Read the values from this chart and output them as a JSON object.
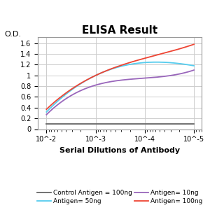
{
  "title": "ELISA Result",
  "ylabel": "O.D.",
  "xlabel": "Serial Dilutions of Antibody",
  "xvals": [
    0.01,
    0.001,
    0.0001,
    1e-05
  ],
  "control_antigen": {
    "label": "Control Antigen = 100ng",
    "color": "#666666",
    "y": [
      0.1,
      0.1,
      0.1,
      0.1
    ]
  },
  "antigen_10ng": {
    "label": "Antigen= 10ng",
    "color": "#9966bb",
    "y": [
      1.1,
      0.95,
      0.82,
      0.27
    ]
  },
  "antigen_50ng": {
    "label": "Antigen= 50ng",
    "color": "#55ccee",
    "y": [
      1.18,
      1.24,
      1.0,
      0.32
    ]
  },
  "antigen_100ng": {
    "label": "Antigen= 100ng",
    "color": "#ee4433",
    "y": [
      1.58,
      1.32,
      1.0,
      0.37
    ]
  },
  "ylim": [
    0,
    1.72
  ],
  "yticks": [
    0,
    0.2,
    0.4,
    0.6,
    0.8,
    1.0,
    1.2,
    1.4,
    1.6
  ],
  "background_color": "#ffffff",
  "grid_color": "#cccccc",
  "title_fontsize": 11,
  "tick_fontsize": 7,
  "label_fontsize": 8,
  "legend_fontsize": 6.5
}
